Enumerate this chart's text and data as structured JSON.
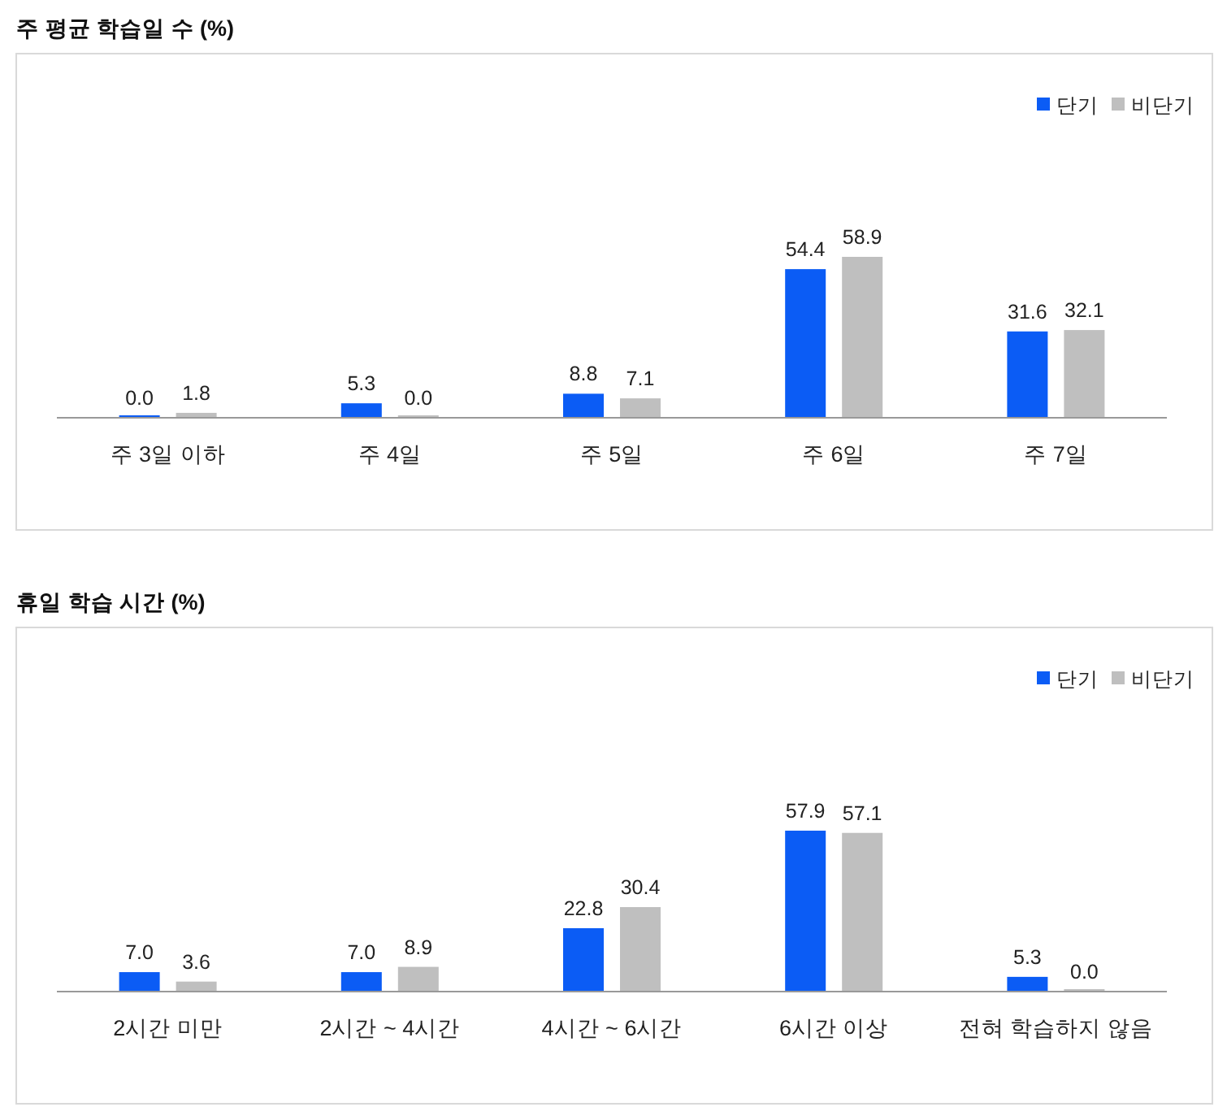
{
  "chart_data": [
    {
      "type": "bar",
      "title": "주 평균 학습일 수 (%)",
      "categories": [
        "주 3일 이하",
        "주 4일",
        "주 5일",
        "주 6일",
        "주 7일"
      ],
      "legend": "top right",
      "series": [
        {
          "name": "단기",
          "color": "#0b5cf5",
          "values": [
            0.0,
            5.3,
            8.8,
            54.4,
            31.6
          ],
          "value_labels": [
            "0.0",
            "5.3",
            "8.8",
            "54.4",
            "31.6"
          ]
        },
        {
          "name": "비단기",
          "color": "#bfbfbf",
          "values": [
            1.8,
            0.0,
            7.1,
            58.9,
            32.1
          ],
          "value_labels": [
            "1.8",
            "0.0",
            "7.1",
            "58.9",
            "32.1"
          ]
        }
      ]
    },
    {
      "type": "bar",
      "title": "휴일 학습 시간 (%)",
      "categories": [
        "2시간 미만",
        "2시간 ~ 4시간",
        "4시간 ~ 6시간",
        "6시간 이상",
        "전혀 학습하지 않음"
      ],
      "legend": "top right",
      "series": [
        {
          "name": "단기",
          "color": "#0b5cf5",
          "values": [
            7.0,
            7.0,
            22.8,
            57.9,
            5.3
          ],
          "value_labels": [
            "7.0",
            "7.0",
            "22.8",
            "57.9",
            "5.3"
          ]
        },
        {
          "name": "비단기",
          "color": "#bfbfbf",
          "values": [
            3.6,
            8.9,
            30.4,
            57.1,
            0.0
          ],
          "value_labels": [
            "3.6",
            "8.9",
            "30.4",
            "57.1",
            "0.0"
          ]
        }
      ]
    }
  ]
}
